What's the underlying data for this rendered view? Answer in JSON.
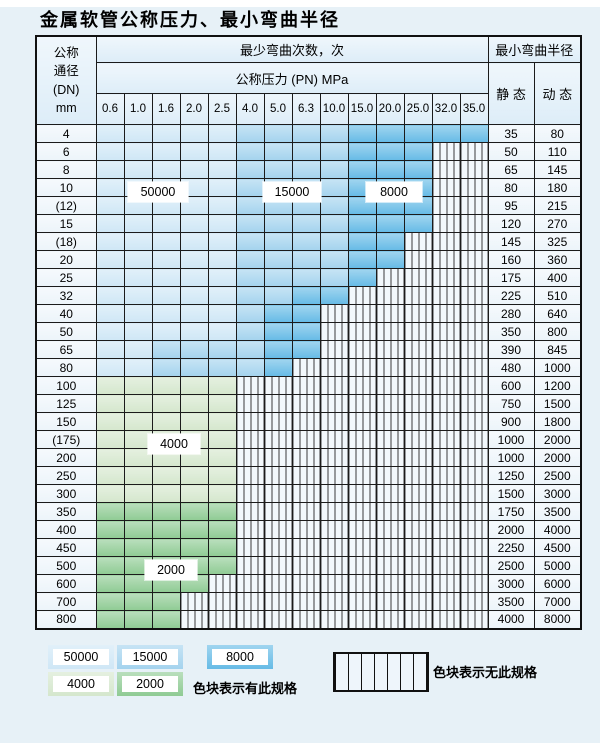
{
  "page": {
    "title": "金属软管公称压力、最小弯曲半径"
  },
  "table": {
    "header": {
      "dn_lines": "公称\n通径\n(DN)\nmm",
      "bend_times": "最少弯曲次数，次",
      "pressure": "公称压力 (PN) MPa",
      "radius": "最小弯曲半径",
      "static_label": "静 态",
      "dynamic_label": "动 态"
    },
    "pressure_columns": [
      "0.6",
      "1.0",
      "1.6",
      "2.0",
      "2.5",
      "4.0",
      "5.0",
      "6.3",
      "10.0",
      "15.0",
      "20.0",
      "25.0",
      "32.0",
      "35.0"
    ],
    "zone_legend_key": {
      "L": "50000",
      "M": "15000",
      "D": "8000",
      "g": "4000",
      "G": "2000",
      "H": "无此规格"
    },
    "rows": [
      {
        "dn": "4",
        "zones": "LLLLLMMMMDDDDD",
        "static": "35",
        "dynamic": "80"
      },
      {
        "dn": "6",
        "zones": "LLLLLMMMMDDDHH",
        "static": "50",
        "dynamic": "110"
      },
      {
        "dn": "8",
        "zones": "LLLLLMMMMDDDHH",
        "static": "65",
        "dynamic": "145"
      },
      {
        "dn": "10",
        "zones": "LLLLLMMMMDDDHH",
        "static": "80",
        "dynamic": "180"
      },
      {
        "dn": "(12)",
        "zones": "LLLLLMMMMDDDHH",
        "static": "95",
        "dynamic": "215"
      },
      {
        "dn": "15",
        "zones": "LLLLLMMMMDDDHH",
        "static": "120",
        "dynamic": "270"
      },
      {
        "dn": "(18)",
        "zones": "LLLLLMMMMDDHHH",
        "static": "145",
        "dynamic": "325"
      },
      {
        "dn": "20",
        "zones": "LLLLLMMMMDDHHH",
        "static": "160",
        "dynamic": "360"
      },
      {
        "dn": "25",
        "zones": "LLLLLMMMMDHHHH",
        "static": "175",
        "dynamic": "400"
      },
      {
        "dn": "32",
        "zones": "LLLLLMMDDHHHHH",
        "static": "225",
        "dynamic": "510"
      },
      {
        "dn": "40",
        "zones": "LLLLLMDDHHHHHH",
        "static": "280",
        "dynamic": "640"
      },
      {
        "dn": "50",
        "zones": "LLLLLMDDHHHHHH",
        "static": "350",
        "dynamic": "800"
      },
      {
        "dn": "65",
        "zones": "LLMMMMDDHHHHHH",
        "static": "390",
        "dynamic": "845"
      },
      {
        "dn": "80",
        "zones": "LLMMMMDHHHHHHH",
        "static": "480",
        "dynamic": "1000"
      },
      {
        "dn": "100",
        "zones": "gggggHHHHHHHHH",
        "static": "600",
        "dynamic": "1200"
      },
      {
        "dn": "125",
        "zones": "gggggHHHHHHHHH",
        "static": "750",
        "dynamic": "1500"
      },
      {
        "dn": "150",
        "zones": "gggggHHHHHHHHH",
        "static": "900",
        "dynamic": "1800"
      },
      {
        "dn": "(175)",
        "zones": "gggggHHHHHHHHH",
        "static": "1000",
        "dynamic": "2000"
      },
      {
        "dn": "200",
        "zones": "gggggHHHHHHHHH",
        "static": "1000",
        "dynamic": "2000"
      },
      {
        "dn": "250",
        "zones": "gggggHHHHHHHHH",
        "static": "1250",
        "dynamic": "2500"
      },
      {
        "dn": "300",
        "zones": "gggggHHHHHHHHH",
        "static": "1500",
        "dynamic": "3000"
      },
      {
        "dn": "350",
        "zones": "GGGGGHHHHHHHHH",
        "static": "1750",
        "dynamic": "3500"
      },
      {
        "dn": "400",
        "zones": "GGGGGHHHHHHHHH",
        "static": "2000",
        "dynamic": "4000"
      },
      {
        "dn": "450",
        "zones": "GGGGGHHHHHHHHH",
        "static": "2250",
        "dynamic": "4500"
      },
      {
        "dn": "500",
        "zones": "GGGGGHHHHHHHHH",
        "static": "2500",
        "dynamic": "5000"
      },
      {
        "dn": "600",
        "zones": "GGGGHHHHHHHHHH",
        "static": "3000",
        "dynamic": "6000"
      },
      {
        "dn": "700",
        "zones": "GGGHHHHHHHHHHH",
        "static": "3500",
        "dynamic": "7000"
      },
      {
        "dn": "800",
        "zones": "GGGHHHHHHHHHHH",
        "static": "4000",
        "dynamic": "8000"
      }
    ]
  },
  "float_labels": {
    "l50000": "50000",
    "l15000": "15000",
    "l8000": "8000",
    "l4000": "4000",
    "l2000": "2000"
  },
  "legend": {
    "items": [
      {
        "label": "50000",
        "zone": "L"
      },
      {
        "label": "15000",
        "zone": "M"
      },
      {
        "label": "8000",
        "zone": "D"
      },
      {
        "label": "4000",
        "zone": "g"
      },
      {
        "label": "2000",
        "zone": "G"
      }
    ],
    "has_spec_text": "色块表示有此规格",
    "no_spec_text": "色块表示无此规格"
  },
  "colors": {
    "zone_50000": "#cfe7f6",
    "zone_15000": "#a4d3ee",
    "zone_8000": "#66bbe6",
    "zone_4000": "#d5e7cd",
    "zone_2000": "#8fcb94",
    "no_spec_bg": "#f2f8fc",
    "header_bg": "#ddedf8",
    "page_bg": "#e7f1f7",
    "grid_line": "#1b1b1b"
  }
}
